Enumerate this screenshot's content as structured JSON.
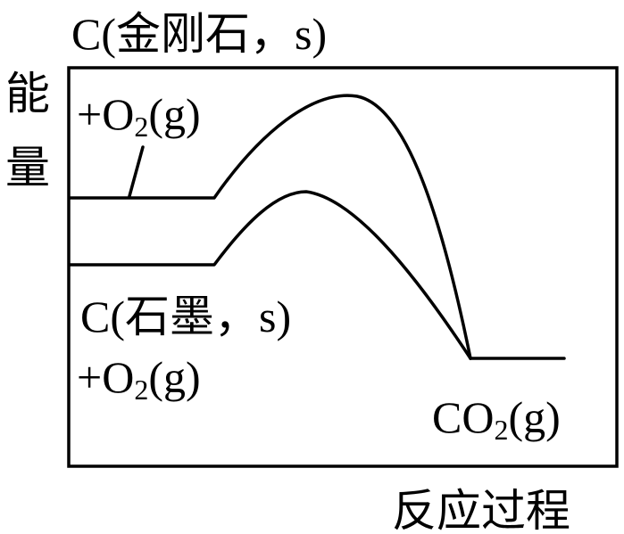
{
  "axes": {
    "y_label": "能量",
    "x_label": "反应过程"
  },
  "labels": {
    "diamond_line1": "C(金刚石，s)",
    "diamond_line2_prefix": "+O",
    "diamond_line2_sub": "2",
    "diamond_line2_suffix": "(g)",
    "graphite_line1": "C(石墨，s)",
    "graphite_line2_prefix": "+O",
    "graphite_line2_sub": "2",
    "graphite_line2_suffix": "(g)",
    "product_prefix": "CO",
    "product_sub": "2",
    "product_suffix": "(g)"
  }
}
